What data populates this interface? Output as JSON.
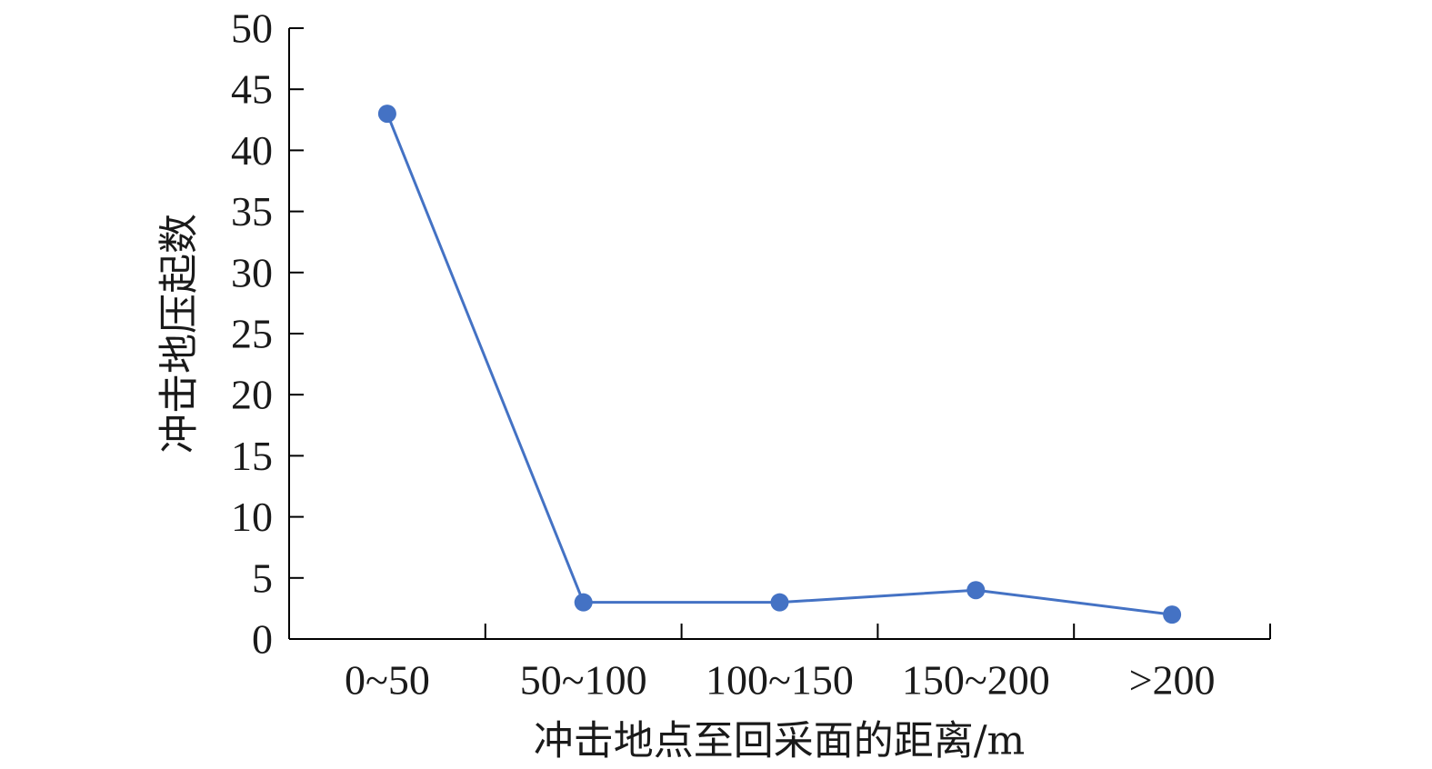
{
  "chart_data": {
    "type": "line",
    "categories": [
      "0~50",
      "50~100",
      "100~150",
      "150~200",
      ">200"
    ],
    "series": [
      {
        "values": [
          43,
          3,
          3,
          4,
          2
        ]
      }
    ],
    "xlabel": "冲击地点至回采面的距离/m",
    "ylabel": "冲击地压起数",
    "ylim": [
      0,
      50
    ],
    "yticks": [
      0,
      5,
      10,
      15,
      20,
      25,
      30,
      35,
      40,
      45,
      50
    ],
    "grid": false,
    "legend": "none",
    "colors": {
      "series": "#4472c4",
      "axis": "#000000",
      "text": "#1a1a1a"
    }
  }
}
